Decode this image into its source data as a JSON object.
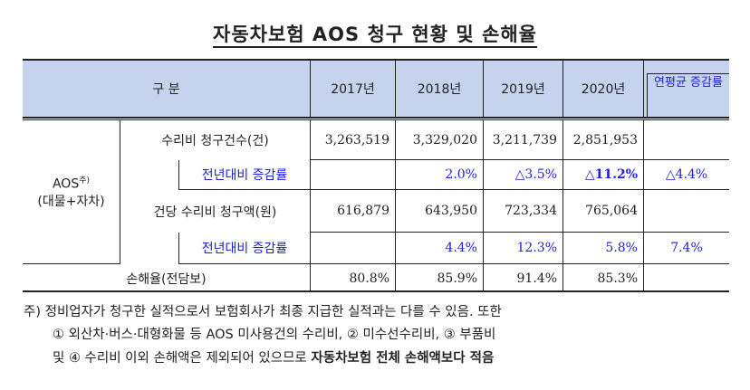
{
  "title": "자동차보험 AOS 청구 현황 및 손해율",
  "header": {
    "category": "구 분",
    "years": [
      "2017년",
      "2018년",
      "2019년",
      "2020년"
    ],
    "avg": "연평균 증감률"
  },
  "group_label": "AOS",
  "group_sup": "주)",
  "group_sub": "(대물+자차)",
  "rows": [
    {
      "label": "수리비 청구건수(건)",
      "values": [
        "3,263,519",
        "3,329,020",
        "3,211,739",
        "2,851,953"
      ],
      "avg": ""
    },
    {
      "label": "전년대비 증감률",
      "values": [
        "",
        "2.0%",
        "△3.5%",
        "△11.2%"
      ],
      "avg": "△4.4%"
    },
    {
      "label": "건당 수리비 청구액(원)",
      "values": [
        "616,879",
        "643,950",
        "723,334",
        "765,064"
      ],
      "avg": ""
    },
    {
      "label": "전년대비 증감률",
      "values": [
        "",
        "4.4%",
        "12.3%",
        "5.8%"
      ],
      "avg": "7.4%"
    },
    {
      "label": "손해율(전담보)",
      "values": [
        "80.8%",
        "85.9%",
        "91.4%",
        "85.3%"
      ],
      "avg": ""
    }
  ],
  "notes": {
    "line1": "주) 정비업자가 청구한 실적으로서 보험회사가 최종 지급한 실적과는 다를 수 있음. 또한",
    "line2": "① 외산차·버스·대형화물 등 AOS 미사용건의 수리비, ② 미수선수리비, ③ 부품비",
    "line3_normal": "및 ④ 수리비 이외 손해액은 제외되어 있으므로 ",
    "line3_bold": "자동차보험 전체 손해액보다 적음"
  },
  "colors": {
    "header_bg": "#c5d3ee",
    "accent_blue": "#1e1ee0"
  }
}
